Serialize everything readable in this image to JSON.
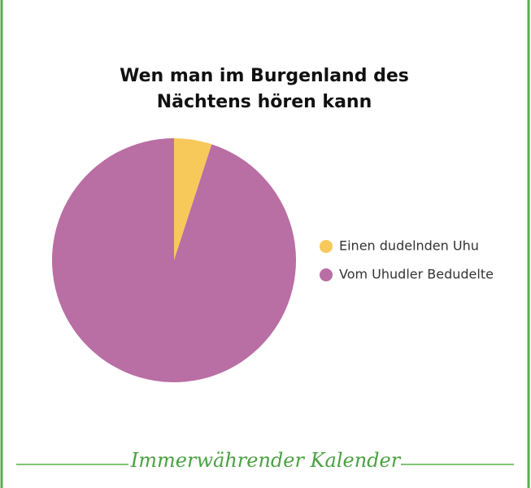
{
  "chart_data": {
    "type": "pie",
    "title": "Wen man im Burgenland des Nächtens hören kann",
    "categories": [
      "Einen dudelnden Uhu",
      "Vom Uhudler Bedudelte"
    ],
    "values": [
      5,
      95
    ],
    "colors": [
      "#f7c95b",
      "#b96ea4"
    ],
    "legend": "right"
  },
  "footer": "Immerwährender Kalender"
}
